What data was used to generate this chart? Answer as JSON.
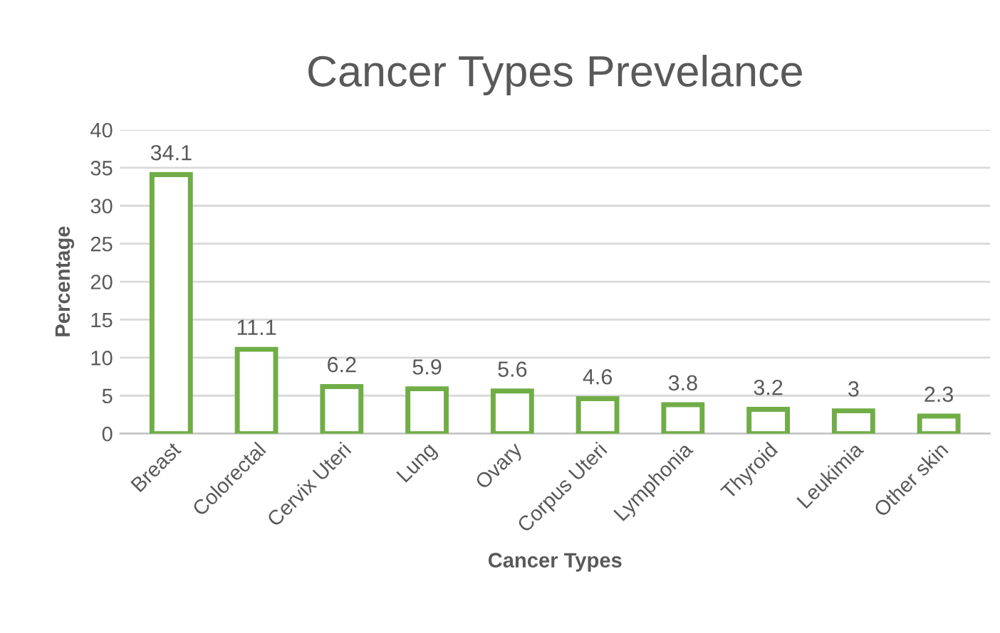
{
  "chart_data": {
    "type": "bar",
    "title": "Cancer Types Prevelance",
    "xlabel": "Cancer Types",
    "ylabel": "Percentage",
    "categories": [
      "Breast",
      "Colorectal",
      "Cervix Uteri",
      "Lung",
      "Ovary",
      "Corpus Uteri",
      "Lymphonia",
      "Thyroid",
      "Leukimia",
      "Other skin"
    ],
    "values": [
      34.1,
      11.1,
      6.2,
      5.9,
      5.6,
      4.6,
      3.8,
      3.2,
      3,
      2.3
    ],
    "color": "#70ad47",
    "ylim": [
      0,
      40
    ],
    "yticks": [
      0,
      5,
      10,
      15,
      20,
      25,
      30,
      35,
      40
    ],
    "grid": "y",
    "data_labels": true
  }
}
